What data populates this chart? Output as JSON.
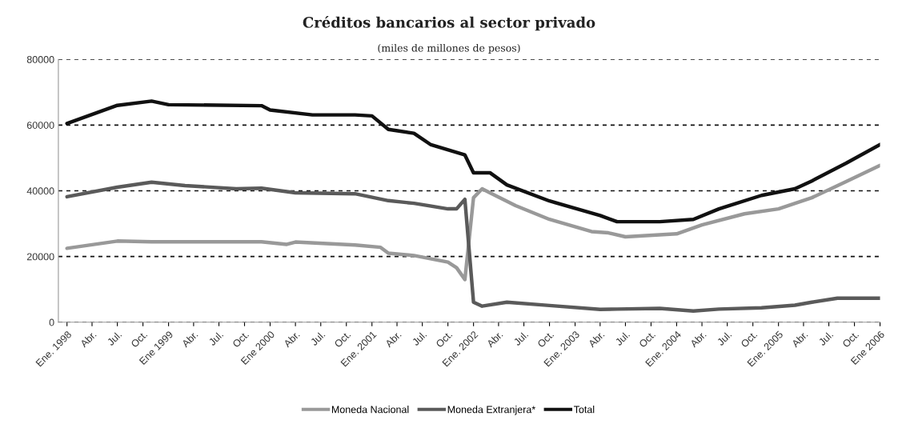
{
  "chart_data": {
    "type": "line",
    "title": "Créditos bancarios al sector privado",
    "subtitle": "(miles de millones de pesos)",
    "xlim": [
      "1997-12",
      "2006-01"
    ],
    "xticks": [
      {
        "value": "1998-01",
        "label": "Ene. 1998"
      },
      {
        "value": "1998-04",
        "label": "Abr."
      },
      {
        "value": "1998-07",
        "label": "Jul."
      },
      {
        "value": "1998-10",
        "label": "Oct."
      },
      {
        "value": "1999-01",
        "label": "Ene 1999"
      },
      {
        "value": "1999-04",
        "label": "Abr."
      },
      {
        "value": "1999-07",
        "label": "Jul."
      },
      {
        "value": "1999-10",
        "label": "Oct."
      },
      {
        "value": "2000-01",
        "label": "Ene 2000"
      },
      {
        "value": "2000-04",
        "label": "Abr."
      },
      {
        "value": "2000-07",
        "label": "Jul."
      },
      {
        "value": "2000-10",
        "label": "Oct."
      },
      {
        "value": "2001-01",
        "label": "Ene. 2001"
      },
      {
        "value": "2001-04",
        "label": "Abr."
      },
      {
        "value": "2001-07",
        "label": "Jul."
      },
      {
        "value": "2001-10",
        "label": "Oct."
      },
      {
        "value": "2002-01",
        "label": "Ene. 2002"
      },
      {
        "value": "2002-04",
        "label": "Abr."
      },
      {
        "value": "2002-07",
        "label": "Jul."
      },
      {
        "value": "2002-10",
        "label": "Oct."
      },
      {
        "value": "2003-01",
        "label": "Ene. 2003"
      },
      {
        "value": "2003-04",
        "label": "Abr."
      },
      {
        "value": "2003-07",
        "label": "Jul."
      },
      {
        "value": "2003-10",
        "label": "Oct."
      },
      {
        "value": "2004-01",
        "label": "Ene. 2004"
      },
      {
        "value": "2004-04",
        "label": "Abr."
      },
      {
        "value": "2004-07",
        "label": "Jul."
      },
      {
        "value": "2004-10",
        "label": "Oct."
      },
      {
        "value": "2005-01",
        "label": "Ene. 2005"
      },
      {
        "value": "2005-04",
        "label": "Abr."
      },
      {
        "value": "2005-07",
        "label": "Jul."
      },
      {
        "value": "2005-10",
        "label": "Oct."
      },
      {
        "value": "2006-01",
        "label": "Ene 2006"
      }
    ],
    "ylim": [
      0,
      80000
    ],
    "yticks": [
      0,
      20000,
      40000,
      60000,
      80000
    ],
    "grid": "y",
    "legend": "bottom",
    "marker": "none",
    "line_style": "solid",
    "series": [
      {
        "name": "Moneda Nacional",
        "color": "#999999",
        "x": [
          "1998-01",
          "1998-07",
          "1998-11",
          "1999-12",
          "2000-03",
          "2000-04",
          "2000-11",
          "2001-02",
          "2001-03",
          "2001-06",
          "2001-10",
          "2001-11",
          "2001-12",
          "2002-01",
          "2002-02",
          "2002-03",
          "2002-06",
          "2002-10",
          "2003-03",
          "2003-05",
          "2003-07",
          "2004-01",
          "2004-04",
          "2004-09",
          "2005-01",
          "2005-05",
          "2005-09",
          "2006-01"
        ],
        "values": [
          22500,
          24700,
          24500,
          24500,
          23700,
          24400,
          23500,
          22800,
          21000,
          20300,
          18300,
          16600,
          13000,
          37900,
          40600,
          39400,
          35500,
          31300,
          27600,
          27200,
          26000,
          26900,
          29600,
          33000,
          34500,
          37900,
          42800,
          47700
        ]
      },
      {
        "name": "Moneda Extranjera*",
        "color": "#5a5a5a",
        "x": [
          "1998-01",
          "1998-07",
          "1998-11",
          "1999-03",
          "1999-09",
          "1999-12",
          "2000-04",
          "2000-11",
          "2001-03",
          "2001-06",
          "2001-10",
          "2001-11",
          "2001-12",
          "2002-01",
          "2002-02",
          "2002-05",
          "2002-10",
          "2003-04",
          "2003-06",
          "2003-11",
          "2004-03",
          "2004-06",
          "2004-11",
          "2005-03",
          "2005-05",
          "2005-08",
          "2006-01"
        ],
        "values": [
          38200,
          41100,
          42600,
          41600,
          40600,
          40800,
          39400,
          39100,
          37000,
          36200,
          34500,
          34500,
          37400,
          6100,
          4900,
          6100,
          5100,
          3900,
          4000,
          4200,
          3400,
          4000,
          4400,
          5200,
          6100,
          7300,
          7300
        ]
      },
      {
        "name": "Total",
        "color": "#111111",
        "x": [
          "1998-01",
          "1998-07",
          "1998-11",
          "1999-01",
          "1999-12",
          "2000-01",
          "2000-06",
          "2000-11",
          "2001-01",
          "2001-03",
          "2001-06",
          "2001-08",
          "2001-12",
          "2002-01",
          "2002-03",
          "2002-05",
          "2002-10",
          "2003-04",
          "2003-06",
          "2003-11",
          "2004-03",
          "2004-06",
          "2004-11",
          "2005-03",
          "2005-05",
          "2005-09",
          "2006-01"
        ],
        "values": [
          60500,
          66000,
          67300,
          66200,
          65900,
          64600,
          63100,
          63100,
          62800,
          58700,
          57500,
          54000,
          50900,
          45500,
          45500,
          41800,
          36900,
          32500,
          30600,
          30600,
          31300,
          34500,
          38600,
          40600,
          43000,
          48400,
          54100
        ]
      }
    ]
  }
}
